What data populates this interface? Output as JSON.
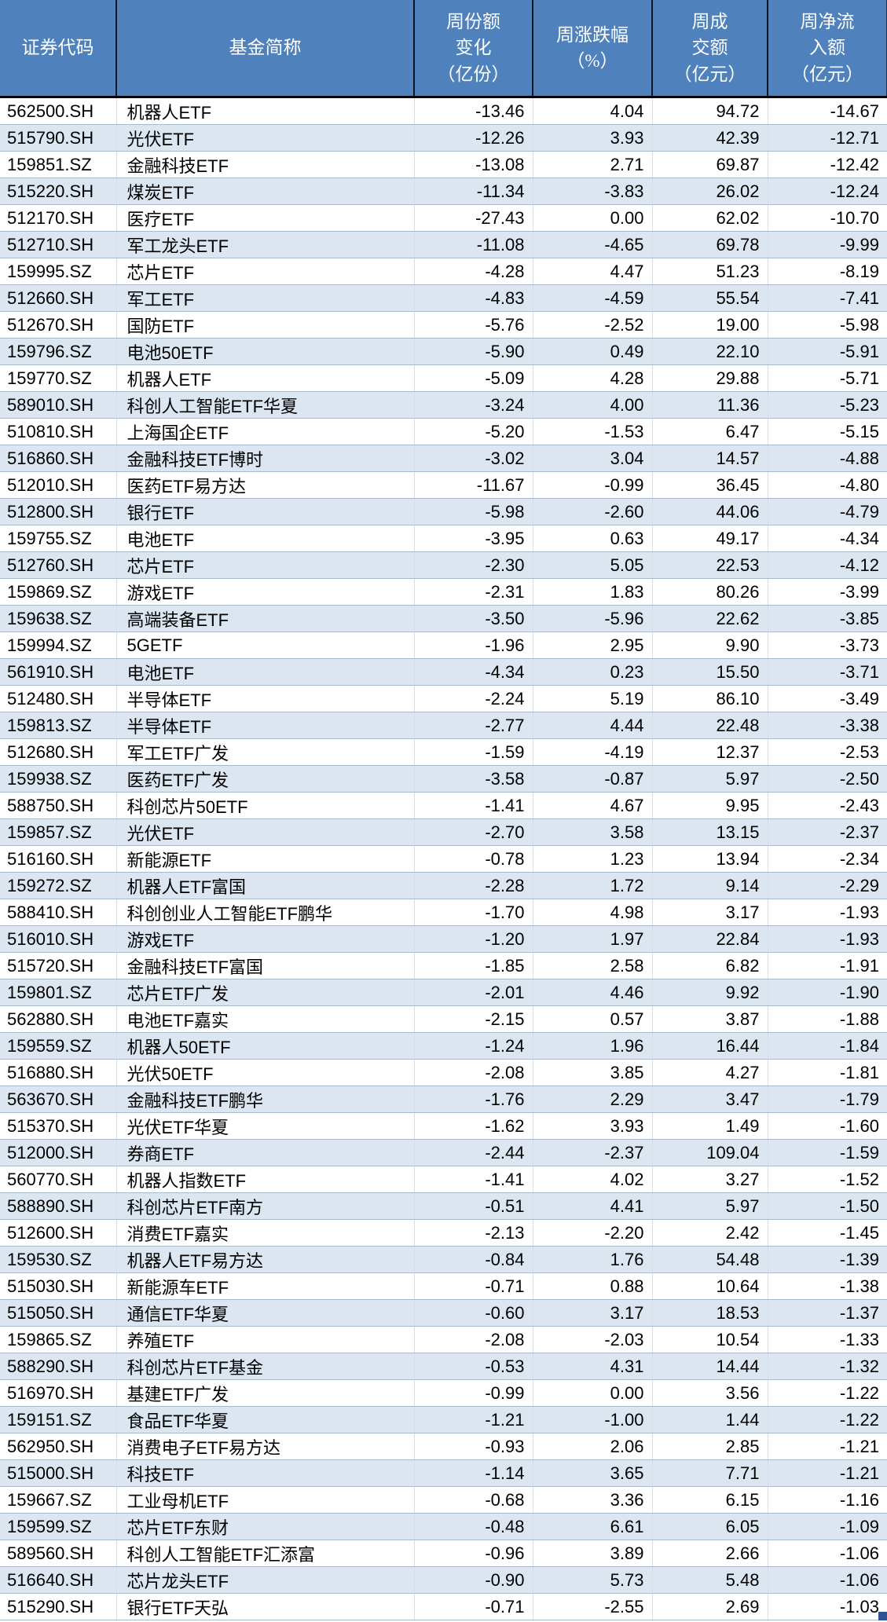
{
  "table": {
    "columns": [
      {
        "label": "证券代码"
      },
      {
        "label": "基金简称"
      },
      {
        "label": "周份额\n变化\n（亿份）"
      },
      {
        "label": "周涨跌幅\n（%）"
      },
      {
        "label": "周成\n交额\n（亿元）"
      },
      {
        "label": "周净流\n入额\n（亿元）"
      }
    ],
    "rows": [
      [
        "562500.SH",
        "机器人ETF",
        "-13.46",
        "4.04",
        "94.72",
        "-14.67"
      ],
      [
        "515790.SH",
        "光伏ETF",
        "-12.26",
        "3.93",
        "42.39",
        "-12.71"
      ],
      [
        "159851.SZ",
        "金融科技ETF",
        "-13.08",
        "2.71",
        "69.87",
        "-12.42"
      ],
      [
        "515220.SH",
        "煤炭ETF",
        "-11.34",
        "-3.83",
        "26.02",
        "-12.24"
      ],
      [
        "512170.SH",
        "医疗ETF",
        "-27.43",
        "0.00",
        "62.02",
        "-10.70"
      ],
      [
        "512710.SH",
        "军工龙头ETF",
        "-11.08",
        "-4.65",
        "69.78",
        "-9.99"
      ],
      [
        "159995.SZ",
        "芯片ETF",
        "-4.28",
        "4.47",
        "51.23",
        "-8.19"
      ],
      [
        "512660.SH",
        "军工ETF",
        "-4.83",
        "-4.59",
        "55.54",
        "-7.41"
      ],
      [
        "512670.SH",
        "国防ETF",
        "-5.76",
        "-2.52",
        "19.00",
        "-5.98"
      ],
      [
        "159796.SZ",
        "电池50ETF",
        "-5.90",
        "0.49",
        "22.10",
        "-5.91"
      ],
      [
        "159770.SZ",
        "机器人ETF",
        "-5.09",
        "4.28",
        "29.88",
        "-5.71"
      ],
      [
        "589010.SH",
        "科创人工智能ETF华夏",
        "-3.24",
        "4.00",
        "11.36",
        "-5.23"
      ],
      [
        "510810.SH",
        "上海国企ETF",
        "-5.20",
        "-1.53",
        "6.47",
        "-5.15"
      ],
      [
        "516860.SH",
        "金融科技ETF博时",
        "-3.02",
        "3.04",
        "14.57",
        "-4.88"
      ],
      [
        "512010.SH",
        "医药ETF易方达",
        "-11.67",
        "-0.99",
        "36.45",
        "-4.80"
      ],
      [
        "512800.SH",
        "银行ETF",
        "-5.98",
        "-2.60",
        "44.06",
        "-4.79"
      ],
      [
        "159755.SZ",
        "电池ETF",
        "-3.95",
        "0.63",
        "49.17",
        "-4.34"
      ],
      [
        "512760.SH",
        "芯片ETF",
        "-2.30",
        "5.05",
        "22.53",
        "-4.12"
      ],
      [
        "159869.SZ",
        "游戏ETF",
        "-2.31",
        "1.83",
        "80.26",
        "-3.99"
      ],
      [
        "159638.SZ",
        "高端装备ETF",
        "-3.50",
        "-5.96",
        "22.62",
        "-3.85"
      ],
      [
        "159994.SZ",
        "5GETF",
        "-1.96",
        "2.95",
        "9.90",
        "-3.73"
      ],
      [
        "561910.SH",
        "电池ETF",
        "-4.34",
        "0.23",
        "15.50",
        "-3.71"
      ],
      [
        "512480.SH",
        "半导体ETF",
        "-2.24",
        "5.19",
        "86.10",
        "-3.49"
      ],
      [
        "159813.SZ",
        "半导体ETF",
        "-2.77",
        "4.44",
        "22.48",
        "-3.38"
      ],
      [
        "512680.SH",
        "军工ETF广发",
        "-1.59",
        "-4.19",
        "12.37",
        "-2.53"
      ],
      [
        "159938.SZ",
        "医药ETF广发",
        "-3.58",
        "-0.87",
        "5.97",
        "-2.50"
      ],
      [
        "588750.SH",
        "科创芯片50ETF",
        "-1.41",
        "4.67",
        "9.95",
        "-2.43"
      ],
      [
        "159857.SZ",
        "光伏ETF",
        "-2.70",
        "3.58",
        "13.15",
        "-2.37"
      ],
      [
        "516160.SH",
        "新能源ETF",
        "-0.78",
        "1.23",
        "13.94",
        "-2.34"
      ],
      [
        "159272.SZ",
        "机器人ETF富国",
        "-2.28",
        "1.72",
        "9.14",
        "-2.29"
      ],
      [
        "588410.SH",
        "科创创业人工智能ETF鹏华",
        "-1.70",
        "4.98",
        "3.17",
        "-1.93"
      ],
      [
        "516010.SH",
        "游戏ETF",
        "-1.20",
        "1.97",
        "22.84",
        "-1.93"
      ],
      [
        "515720.SH",
        "金融科技ETF富国",
        "-1.85",
        "2.58",
        "6.82",
        "-1.91"
      ],
      [
        "159801.SZ",
        "芯片ETF广发",
        "-2.01",
        "4.46",
        "9.92",
        "-1.90"
      ],
      [
        "562880.SH",
        "电池ETF嘉实",
        "-2.15",
        "0.57",
        "3.87",
        "-1.88"
      ],
      [
        "159559.SZ",
        "机器人50ETF",
        "-1.24",
        "1.96",
        "16.44",
        "-1.84"
      ],
      [
        "516880.SH",
        "光伏50ETF",
        "-2.08",
        "3.85",
        "4.27",
        "-1.81"
      ],
      [
        "563670.SH",
        "金融科技ETF鹏华",
        "-1.76",
        "2.29",
        "3.47",
        "-1.79"
      ],
      [
        "515370.SH",
        "光伏ETF华夏",
        "-1.62",
        "3.93",
        "1.49",
        "-1.60"
      ],
      [
        "512000.SH",
        "券商ETF",
        "-2.44",
        "-2.37",
        "109.04",
        "-1.59"
      ],
      [
        "560770.SH",
        "机器人指数ETF",
        "-1.41",
        "4.02",
        "3.27",
        "-1.52"
      ],
      [
        "588890.SH",
        "科创芯片ETF南方",
        "-0.51",
        "4.41",
        "5.97",
        "-1.50"
      ],
      [
        "512600.SH",
        "消费ETF嘉实",
        "-2.13",
        "-2.20",
        "2.42",
        "-1.45"
      ],
      [
        "159530.SZ",
        "机器人ETF易方达",
        "-0.84",
        "1.76",
        "54.48",
        "-1.39"
      ],
      [
        "515030.SH",
        "新能源车ETF",
        "-0.71",
        "0.88",
        "10.64",
        "-1.38"
      ],
      [
        "515050.SH",
        "通信ETF华夏",
        "-0.60",
        "3.17",
        "18.53",
        "-1.37"
      ],
      [
        "159865.SZ",
        "养殖ETF",
        "-2.08",
        "-2.03",
        "10.54",
        "-1.33"
      ],
      [
        "588290.SH",
        "科创芯片ETF基金",
        "-0.53",
        "4.31",
        "14.44",
        "-1.32"
      ],
      [
        "516970.SH",
        "基建ETF广发",
        "-0.99",
        "0.00",
        "3.56",
        "-1.22"
      ],
      [
        "159151.SZ",
        "食品ETF华夏",
        "-1.21",
        "-1.00",
        "1.44",
        "-1.22"
      ],
      [
        "562950.SH",
        "消费电子ETF易方达",
        "-0.93",
        "2.06",
        "2.85",
        "-1.21"
      ],
      [
        "515000.SH",
        "科技ETF",
        "-1.14",
        "3.65",
        "7.71",
        "-1.21"
      ],
      [
        "159667.SZ",
        "工业母机ETF",
        "-0.68",
        "3.36",
        "6.15",
        "-1.16"
      ],
      [
        "159599.SZ",
        "芯片ETF东财",
        "-0.48",
        "6.61",
        "6.05",
        "-1.09"
      ],
      [
        "589560.SH",
        "科创人工智能ETF汇添富",
        "-0.96",
        "3.89",
        "2.66",
        "-1.06"
      ],
      [
        "516640.SH",
        "芯片龙头ETF",
        "-0.90",
        "5.73",
        "5.48",
        "-1.06"
      ],
      [
        "515290.SH",
        "银行ETF天弘",
        "-0.71",
        "-2.55",
        "2.69",
        "-1.03"
      ]
    ]
  },
  "colors": {
    "header_background": "#4F81BD",
    "header_text": "#FFFFFF",
    "header_divider": "#17375E",
    "header_bottom_border": "#000000",
    "row_alt_background": "#DCE6F1",
    "row_background": "#FFFFFF",
    "row_border": "#A9B9CE",
    "column_border": "#D7DDE5",
    "cell_text": "#000000",
    "fill_handle": "#2E5395"
  }
}
